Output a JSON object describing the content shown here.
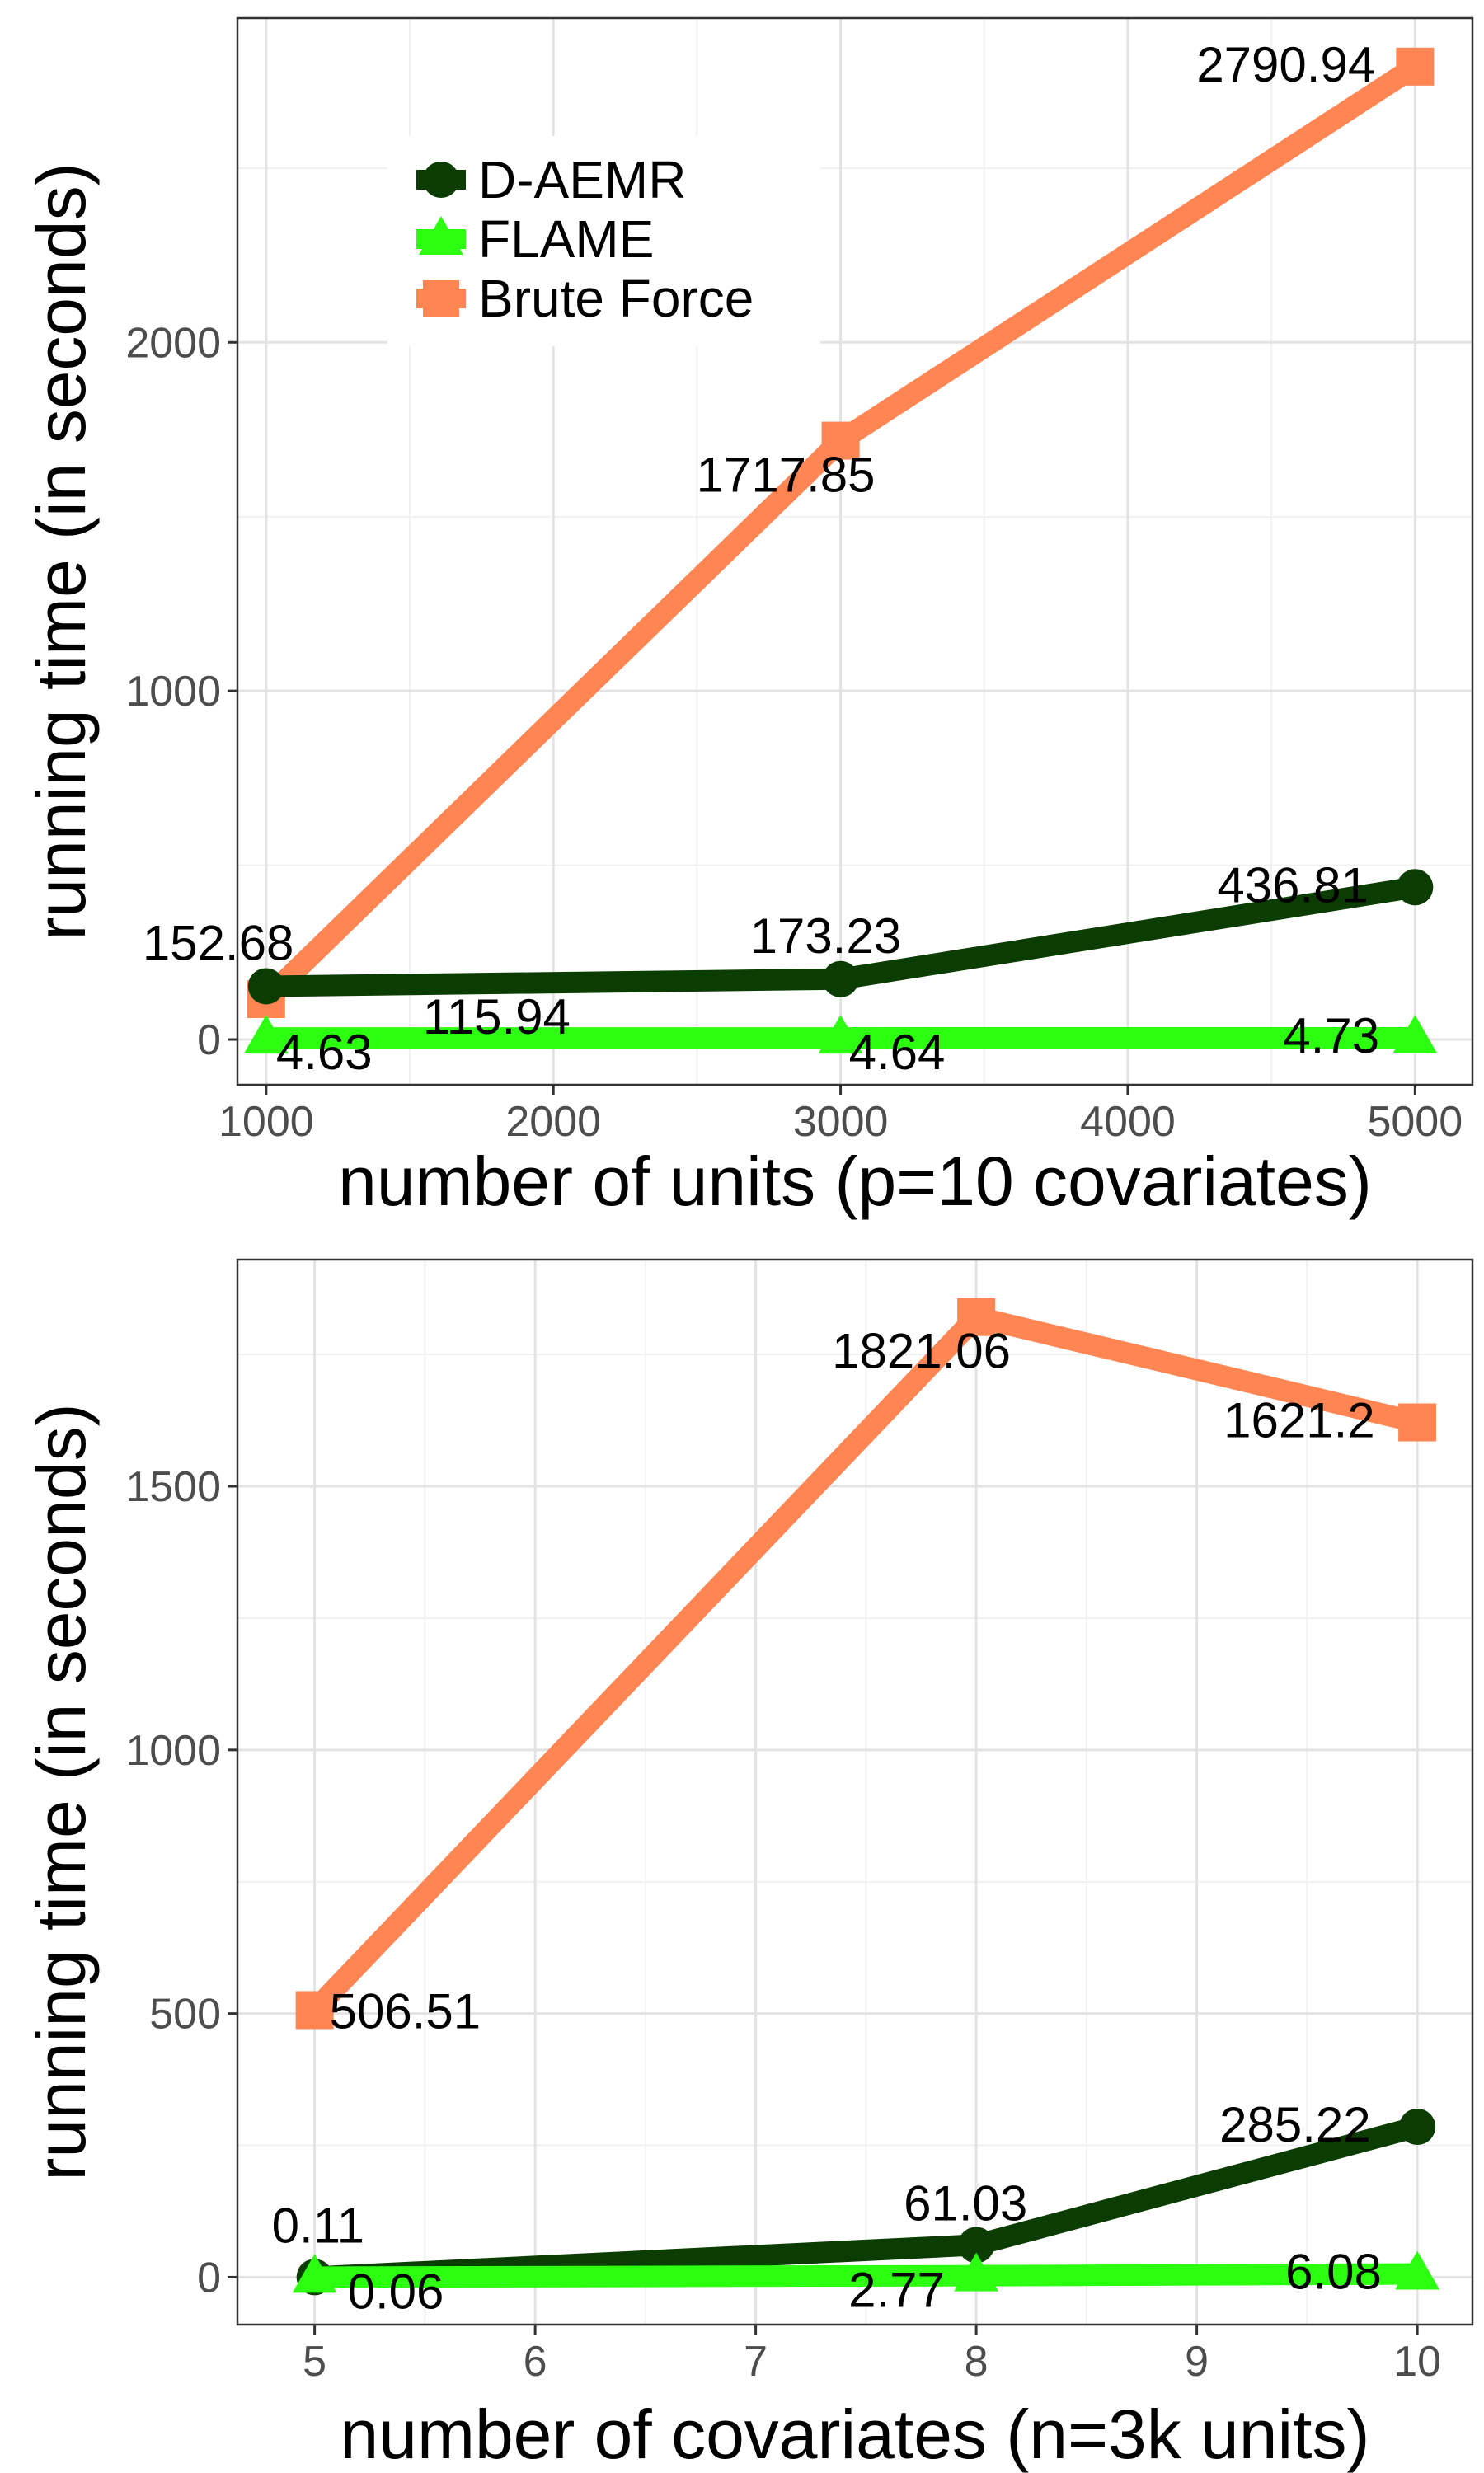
{
  "chart_data": [
    {
      "type": "line",
      "xlabel": "number of units (p=10 covariates)",
      "ylabel": "running time (in seconds)",
      "x": [
        1000,
        3000,
        5000
      ],
      "xlim": [
        900,
        5200
      ],
      "ylim": [
        -130,
        2930
      ],
      "xticks": [
        1000,
        2000,
        3000,
        4000,
        5000
      ],
      "yticks": [
        0,
        1000,
        2000
      ],
      "grid": true,
      "legend": "top-left",
      "series": [
        {
          "name": "D-AEMR",
          "values": [
            152.68,
            173.23,
            436.81
          ],
          "labels": [
            "152.68",
            "173.23",
            "436.81"
          ],
          "color": "#0b3d02",
          "marker": "circle"
        },
        {
          "name": "FLAME",
          "values": [
            4.63,
            4.64,
            4.73
          ],
          "labels": [
            "4.63",
            "4.64",
            "4.73"
          ],
          "color": "#2cff0f",
          "marker": "triangle"
        },
        {
          "name": "Brute Force",
          "values": [
            115.94,
            1717.85,
            2790.94
          ],
          "labels": [
            "115.94",
            "1717.85",
            "2790.94"
          ],
          "color": "#ff8552",
          "marker": "square"
        }
      ]
    },
    {
      "type": "line",
      "xlabel": "number of covariates (n=3k units)",
      "ylabel": "running time (in seconds)",
      "x": [
        5,
        8,
        10
      ],
      "xlim": [
        4.65,
        10.25
      ],
      "ylim": [
        -90,
        1930
      ],
      "xticks": [
        5,
        6,
        7,
        8,
        9,
        10
      ],
      "yticks": [
        0,
        500,
        1000,
        1500
      ],
      "grid": true,
      "legend": "none",
      "series": [
        {
          "name": "D-AEMR",
          "values": [
            0.11,
            61.03,
            285.22
          ],
          "labels": [
            "0.11",
            "61.03",
            "285.22"
          ],
          "color": "#0b3d02",
          "marker": "circle"
        },
        {
          "name": "FLAME",
          "values": [
            0.06,
            2.77,
            6.08
          ],
          "labels": [
            "0.06",
            "2.77",
            "6.08"
          ],
          "color": "#2cff0f",
          "marker": "triangle"
        },
        {
          "name": "Brute Force",
          "values": [
            506.51,
            1821.06,
            1621.2
          ],
          "labels": [
            "506.51",
            "1821.06",
            "1621.2"
          ],
          "color": "#ff8552",
          "marker": "square"
        }
      ]
    }
  ]
}
